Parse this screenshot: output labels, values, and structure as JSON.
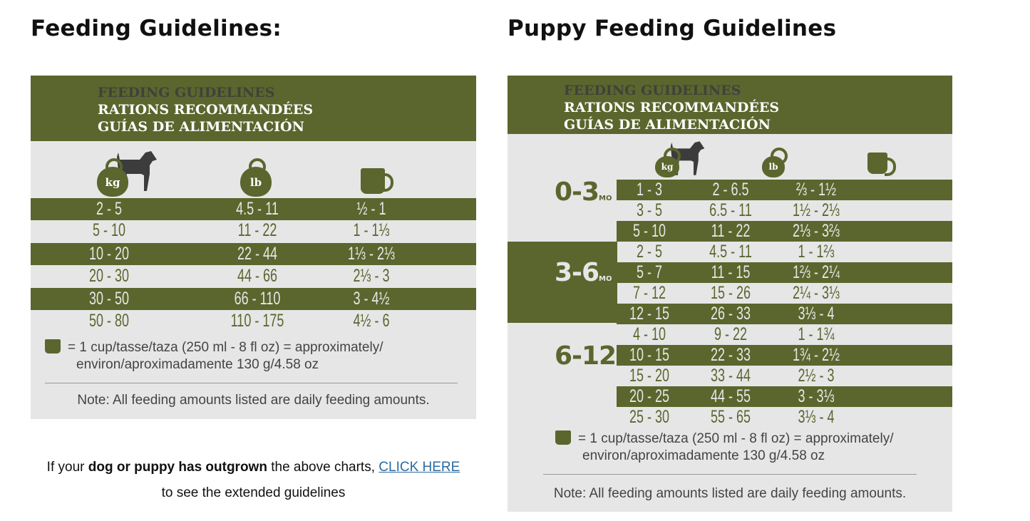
{
  "left": {
    "heading": "Feeding Guidelines:",
    "header": [
      "FEEDING GUIDELINES",
      "RATIONS RECOMMANDÉES",
      "GUÍAS DE ALIMENTACIÓN"
    ],
    "icons": {
      "kg": "kg",
      "lb": "lb"
    },
    "rows": [
      [
        "2 - 5",
        "4.5 - 11",
        "½  -  1"
      ],
      [
        "5 - 10",
        "11 - 22",
        "1  -  1⅓"
      ],
      [
        "10 - 20",
        "22 - 44",
        "1⅓ - 2⅓"
      ],
      [
        "20 - 30",
        "44 - 66",
        "2⅓  -  3"
      ],
      [
        "30 - 50",
        "66 - 110",
        "3  -  4½"
      ],
      [
        "50 - 80",
        "110 - 175",
        "4½  -  6"
      ]
    ],
    "footnote": [
      "= 1 cup/tasse/taza (250 ml - 8 fl oz) = approximately/",
      "environ/aproximadamente 130 g/4.58 oz"
    ],
    "note": "Note: All feeding amounts listed are daily feeding amounts.",
    "outgrown": {
      "pre": "If your ",
      "bold": "dog or puppy has outgrown",
      "mid": " the above charts, ",
      "link": "CLICK HERE",
      "line2": "to see the extended guidelines"
    }
  },
  "right": {
    "heading": "Puppy Feeding Guidelines",
    "header": [
      "FEEDING GUIDELINES",
      "RATIONS RECOMMANDÉES",
      "GUÍAS DE ALIMENTACIÓN"
    ],
    "icons": {
      "kg": "kg",
      "lb": "lb"
    },
    "groups": [
      {
        "age": "0-3",
        "unit": "MO"
      },
      {
        "age": "3-6",
        "unit": "MO"
      },
      {
        "age": "6-12",
        "unit": "MO"
      }
    ],
    "rows": [
      [
        "1 - 3",
        "2 - 6.5",
        "⅔  -  1½"
      ],
      [
        "3 - 5",
        "6.5 - 11",
        "1½ - 2⅓"
      ],
      [
        "5 - 10",
        "11 - 22",
        "2⅓ - 3⅔"
      ],
      [
        "2 - 5",
        "4.5 - 11",
        "1  -  1⅔"
      ],
      [
        "5 - 7",
        "11 - 15",
        "1⅔ - 2¼"
      ],
      [
        "7 - 12",
        "15 - 26",
        "2¼ - 3⅓"
      ],
      [
        "12 - 15",
        "26 - 33",
        "3⅓  -  4"
      ],
      [
        "4 - 10",
        "9 - 22",
        "1  -  1¾"
      ],
      [
        "10 - 15",
        "22 - 33",
        "1¾ - 2½"
      ],
      [
        "15 - 20",
        "33 - 44",
        "2½  -  3"
      ],
      [
        "20 - 25",
        "44 - 55",
        "3  -  3⅓"
      ],
      [
        "25 - 30",
        "55 - 65",
        "3⅓  -  4"
      ]
    ],
    "footnote": [
      "= 1 cup/tasse/taza (250 ml - 8 fl oz) = approximately/",
      "environ/aproximadamente 130 g/4.58 oz"
    ],
    "note": "Note: All feeding amounts listed are daily feeding amounts."
  },
  "colors": {
    "green": "#5a662d",
    "panel": "#e6e6e7"
  }
}
